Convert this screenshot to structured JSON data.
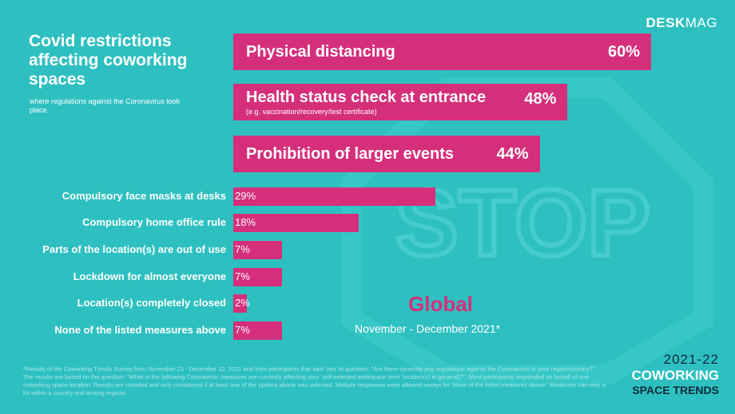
{
  "brand": {
    "part1": "DESK",
    "part2": "MAG"
  },
  "title": "Covid restrictions affecting coworking spaces",
  "subtitle": "where regulations against the Coronavirus took place.",
  "background_text": "STOP",
  "region": "Global",
  "period": "November - December 2021*",
  "footnote": "*Results of the Coworking Trends Survey from November 23 - December 22, 2021 and from participants that said 'yes' to question: \"Are there currently any regulations against the Coronavirus in your region/country?\" The results are based on the question: \"What of the following Coronavirus measures are currently affecting your 'self-selected workspace term' location(s) in general)?\". Most participants responded on behalf of one coworking space location. Results are rounded and only considered if at least one of the options above was selected. Multiple responses were allowed except for 'None of the listed measures above'. Measures can vary a lot within a country and among regions.",
  "trends": {
    "years": "2021-22",
    "line1": "COWORKING",
    "line2": "SPACE TRENDS"
  },
  "colors": {
    "bar": "#d52f7b",
    "background": "#2ec0c0",
    "dark": "#0f2a3a"
  },
  "chart_data": {
    "type": "bar",
    "orientation": "horizontal",
    "title": "Covid restrictions affecting coworking spaces",
    "categories": [
      "Physical distancing",
      "Health status check at entrance",
      "Prohibition of larger events",
      "Compulsory face masks at desks",
      "Compulsory home office rule",
      "Parts of the location(s) are out of use",
      "Lockdown for almost everyone",
      "Location(s) completely closed",
      "None of the listed measures above"
    ],
    "values": [
      60,
      48,
      44,
      29,
      18,
      7,
      7,
      2,
      7
    ],
    "value_labels": [
      "60%",
      "48%",
      "44%",
      "29%",
      "18%",
      "7%",
      "7%",
      "2%",
      "7%"
    ],
    "notes": [
      "",
      "(e.g. vaccination/recovery/test certificate)",
      "",
      "",
      "",
      "",
      "",
      "",
      ""
    ],
    "unit": "%"
  }
}
